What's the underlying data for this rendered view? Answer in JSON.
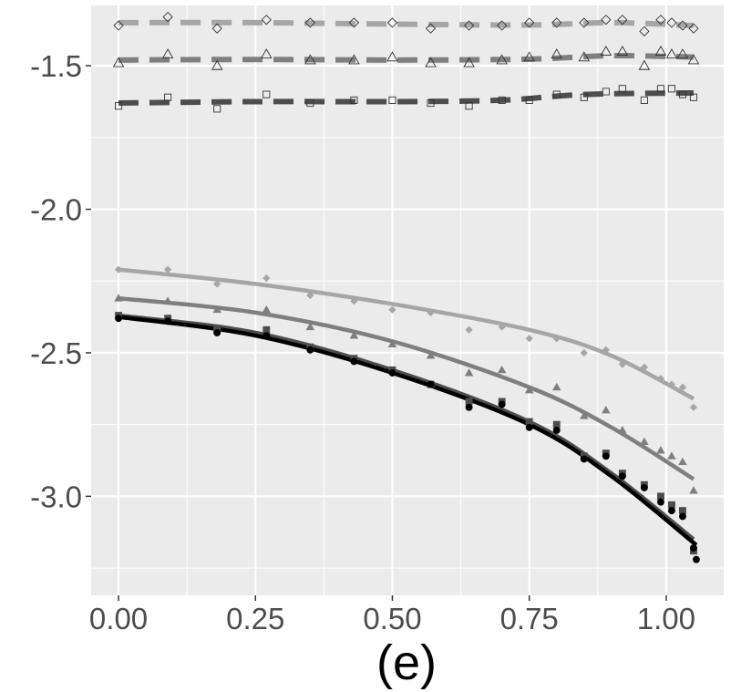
{
  "chart_data": {
    "type": "scatter",
    "title": "",
    "caption": "(e)",
    "xlabel": "",
    "ylabel": "",
    "xlim": [
      -0.05,
      1.105
    ],
    "ylim": [
      -3.345,
      -1.29
    ],
    "x_ticks": [
      0.0,
      0.25,
      0.5,
      0.75,
      1.0
    ],
    "x_tick_labels": [
      "0.00",
      "0.25",
      "0.50",
      "0.75",
      "1.00"
    ],
    "y_ticks": [
      -3.0,
      -2.5,
      -2.0,
      -1.5
    ],
    "y_tick_labels": [
      "-3.0",
      "-2.5",
      "-2.0",
      "-1.5"
    ],
    "x_minor": [
      0.125,
      0.375,
      0.625,
      0.875
    ],
    "y_minor": [
      -3.25,
      -2.75,
      -2.25,
      -1.75
    ],
    "grid": true,
    "legend": "none",
    "series": [
      {
        "name": "dashed-light-diamond",
        "color": "#a6a6a6",
        "line_style": "dashed",
        "marker": "diamond-open",
        "x": [
          0.0,
          0.09,
          0.18,
          0.27,
          0.35,
          0.43,
          0.5,
          0.57,
          0.64,
          0.7,
          0.75,
          0.8,
          0.85,
          0.89,
          0.92,
          0.96,
          0.99,
          1.01,
          1.03,
          1.05
        ],
        "y": [
          -1.36,
          -1.33,
          -1.37,
          -1.34,
          -1.35,
          -1.35,
          -1.35,
          -1.37,
          -1.36,
          -1.36,
          -1.35,
          -1.35,
          -1.35,
          -1.34,
          -1.34,
          -1.38,
          -1.34,
          -1.35,
          -1.36,
          -1.37
        ],
        "fit": [
          [
            0.0,
            -1.35
          ],
          [
            0.25,
            -1.35
          ],
          [
            0.5,
            -1.355
          ],
          [
            0.75,
            -1.358
          ],
          [
            0.9,
            -1.35
          ],
          [
            1.05,
            -1.36
          ]
        ]
      },
      {
        "name": "dashed-mid-triangle",
        "color": "#7f7f7f",
        "line_style": "dashed",
        "marker": "triangle-open",
        "x": [
          0.0,
          0.09,
          0.18,
          0.27,
          0.35,
          0.43,
          0.5,
          0.57,
          0.64,
          0.7,
          0.75,
          0.8,
          0.85,
          0.89,
          0.92,
          0.96,
          0.99,
          1.01,
          1.03,
          1.05
        ],
        "y": [
          -1.49,
          -1.46,
          -1.5,
          -1.46,
          -1.48,
          -1.48,
          -1.47,
          -1.49,
          -1.49,
          -1.48,
          -1.47,
          -1.46,
          -1.47,
          -1.45,
          -1.45,
          -1.5,
          -1.45,
          -1.46,
          -1.46,
          -1.48
        ],
        "fit": [
          [
            0.0,
            -1.48
          ],
          [
            0.25,
            -1.478
          ],
          [
            0.5,
            -1.48
          ],
          [
            0.75,
            -1.477
          ],
          [
            0.9,
            -1.465
          ],
          [
            1.05,
            -1.47
          ]
        ]
      },
      {
        "name": "dashed-dark-square",
        "color": "#4d4d4d",
        "line_style": "dashed",
        "marker": "square-open",
        "x": [
          0.0,
          0.09,
          0.18,
          0.27,
          0.35,
          0.43,
          0.5,
          0.57,
          0.64,
          0.7,
          0.75,
          0.8,
          0.85,
          0.89,
          0.92,
          0.96,
          0.99,
          1.01,
          1.03,
          1.05
        ],
        "y": [
          -1.64,
          -1.61,
          -1.65,
          -1.6,
          -1.63,
          -1.62,
          -1.62,
          -1.63,
          -1.64,
          -1.62,
          -1.62,
          -1.6,
          -1.61,
          -1.59,
          -1.58,
          -1.62,
          -1.58,
          -1.58,
          -1.6,
          -1.61
        ],
        "fit": [
          [
            0.0,
            -1.63
          ],
          [
            0.25,
            -1.625
          ],
          [
            0.5,
            -1.625
          ],
          [
            0.7,
            -1.62
          ],
          [
            0.85,
            -1.6
          ],
          [
            1.05,
            -1.595
          ]
        ]
      },
      {
        "name": "solid-light-diamond",
        "color": "#a6a6a6",
        "line_style": "solid",
        "marker": "diamond-filled",
        "x": [
          0.0,
          0.09,
          0.18,
          0.27,
          0.35,
          0.43,
          0.5,
          0.57,
          0.64,
          0.7,
          0.75,
          0.8,
          0.85,
          0.89,
          0.92,
          0.96,
          0.99,
          1.01,
          1.03,
          1.05
        ],
        "y": [
          -2.21,
          -2.21,
          -2.26,
          -2.24,
          -2.3,
          -2.32,
          -2.35,
          -2.36,
          -2.42,
          -2.41,
          -2.45,
          -2.45,
          -2.5,
          -2.49,
          -2.54,
          -2.55,
          -2.59,
          -2.61,
          -2.62,
          -2.69
        ],
        "fit": [
          [
            0.0,
            -2.21
          ],
          [
            0.25,
            -2.26
          ],
          [
            0.5,
            -2.33
          ],
          [
            0.75,
            -2.42
          ],
          [
            0.9,
            -2.51
          ],
          [
            1.05,
            -2.66
          ]
        ]
      },
      {
        "name": "solid-mid-triangle",
        "color": "#7f7f7f",
        "line_style": "solid",
        "marker": "triangle-filled",
        "x": [
          0.0,
          0.09,
          0.18,
          0.27,
          0.35,
          0.43,
          0.5,
          0.57,
          0.64,
          0.7,
          0.75,
          0.8,
          0.85,
          0.89,
          0.92,
          0.96,
          0.99,
          1.01,
          1.03,
          1.05
        ],
        "y": [
          -2.31,
          -2.32,
          -2.35,
          -2.35,
          -2.41,
          -2.44,
          -2.47,
          -2.51,
          -2.57,
          -2.56,
          -2.63,
          -2.62,
          -2.72,
          -2.7,
          -2.77,
          -2.81,
          -2.84,
          -2.86,
          -2.88,
          -2.98
        ],
        "fit": [
          [
            0.0,
            -2.31
          ],
          [
            0.25,
            -2.36
          ],
          [
            0.5,
            -2.46
          ],
          [
            0.75,
            -2.62
          ],
          [
            0.9,
            -2.76
          ],
          [
            1.05,
            -2.94
          ]
        ]
      },
      {
        "name": "solid-dark-square",
        "color": "#4d4d4d",
        "line_style": "solid",
        "marker": "square-filled",
        "x": [
          0.0,
          0.09,
          0.18,
          0.27,
          0.35,
          0.43,
          0.5,
          0.57,
          0.64,
          0.7,
          0.75,
          0.8,
          0.85,
          0.89,
          0.92,
          0.96,
          0.99,
          1.01,
          1.03,
          1.05
        ],
        "y": [
          -2.37,
          -2.38,
          -2.42,
          -2.42,
          -2.48,
          -2.52,
          -2.56,
          -2.61,
          -2.67,
          -2.67,
          -2.74,
          -2.75,
          -2.86,
          -2.85,
          -2.92,
          -2.96,
          -3.0,
          -3.03,
          -3.05,
          -3.19
        ],
        "fit": [
          [
            0.0,
            -2.37
          ],
          [
            0.25,
            -2.43
          ],
          [
            0.5,
            -2.56
          ],
          [
            0.75,
            -2.74
          ],
          [
            0.9,
            -2.92
          ],
          [
            1.05,
            -3.15
          ]
        ]
      },
      {
        "name": "solid-black-circle",
        "color": "#000000",
        "line_style": "solid",
        "marker": "circle-filled",
        "x": [
          0.0,
          0.09,
          0.18,
          0.27,
          0.35,
          0.43,
          0.5,
          0.57,
          0.64,
          0.7,
          0.75,
          0.8,
          0.85,
          0.89,
          0.92,
          0.96,
          0.99,
          1.01,
          1.03,
          1.05,
          1.055
        ],
        "y": [
          -2.38,
          -2.39,
          -2.43,
          -2.44,
          -2.49,
          -2.53,
          -2.57,
          -2.61,
          -2.69,
          -2.68,
          -2.76,
          -2.77,
          -2.87,
          -2.86,
          -2.93,
          -2.97,
          -3.02,
          -3.05,
          -3.07,
          -3.18,
          -3.22
        ],
        "fit": [
          [
            0.0,
            -2.375
          ],
          [
            0.25,
            -2.44
          ],
          [
            0.5,
            -2.57
          ],
          [
            0.75,
            -2.75
          ],
          [
            0.9,
            -2.93
          ],
          [
            1.055,
            -3.17
          ]
        ]
      }
    ]
  }
}
